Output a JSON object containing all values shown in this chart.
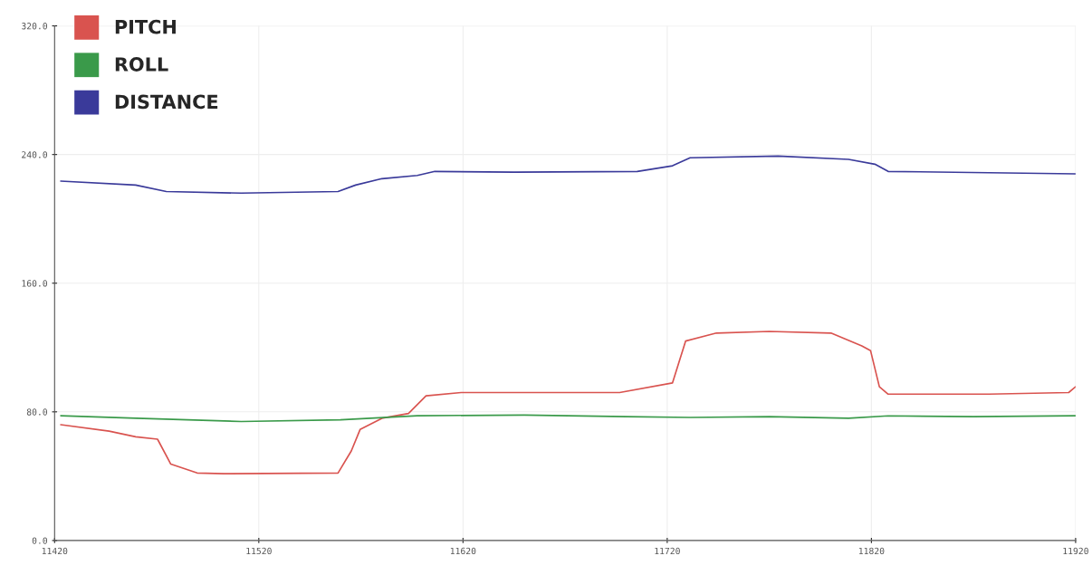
{
  "chart_data": {
    "type": "line",
    "xlim": [
      11420,
      11920
    ],
    "ylim": [
      0,
      320
    ],
    "xticks": [
      11420,
      11520,
      11620,
      11720,
      11820,
      11920
    ],
    "yticks": [
      {
        "value": 0,
        "label": "0.0"
      },
      {
        "value": 80,
        "label": "80.0"
      },
      {
        "value": 160,
        "label": "160.0"
      },
      {
        "value": 240,
        "label": "240.0"
      },
      {
        "value": 320,
        "label": "320.0"
      }
    ],
    "grid": true,
    "legend": "top left",
    "marker": "none",
    "line_style": "solid",
    "series": [
      {
        "name": "PITCH",
        "color": "#d9534f",
        "x": [
          11423,
          11446.7,
          11459.7,
          11470.4,
          11476.9,
          11489.8,
          11502.8,
          11558.8,
          11565.3,
          11569.6,
          11580.3,
          11593.3,
          11601.9,
          11619.1,
          11696.7,
          11722.6,
          11729,
          11744.1,
          11770,
          11800.2,
          11815.3,
          11819.6,
          11823.9,
          11828.2,
          11877.6,
          11916.6,
          11920
        ],
        "values": [
          72,
          68,
          64.5,
          63,
          47.5,
          42,
          41.5,
          42,
          55.7,
          69,
          76,
          79,
          90,
          92,
          92,
          98,
          124,
          129,
          130,
          129,
          121,
          118,
          95.6,
          91,
          91,
          92,
          95.6
        ]
      },
      {
        "name": "ROLL",
        "color": "#3a9a4a",
        "x": [
          11423,
          11460,
          11511.4,
          11560,
          11597.6,
          11650,
          11700,
          11731.2,
          11770,
          11808.8,
          11828.2,
          11870,
          11920
        ],
        "values": [
          77.6,
          76,
          74,
          75,
          77.6,
          78,
          77,
          76.5,
          77,
          76,
          77.5,
          77,
          77.6
        ]
      },
      {
        "name": "DISTANCE",
        "color": "#3a3a9a",
        "x": [
          11423,
          11459.7,
          11474.7,
          11511.4,
          11558.8,
          11567.4,
          11580.3,
          11597.6,
          11606.2,
          11645,
          11705.3,
          11722.6,
          11731.2,
          11774.3,
          11808.8,
          11821.7,
          11828.2,
          11920
        ],
        "values": [
          223.5,
          221,
          217,
          216,
          217,
          221,
          225,
          227,
          229.5,
          229,
          229.5,
          233,
          238,
          239,
          237,
          234,
          229.5,
          228
        ]
      }
    ]
  }
}
